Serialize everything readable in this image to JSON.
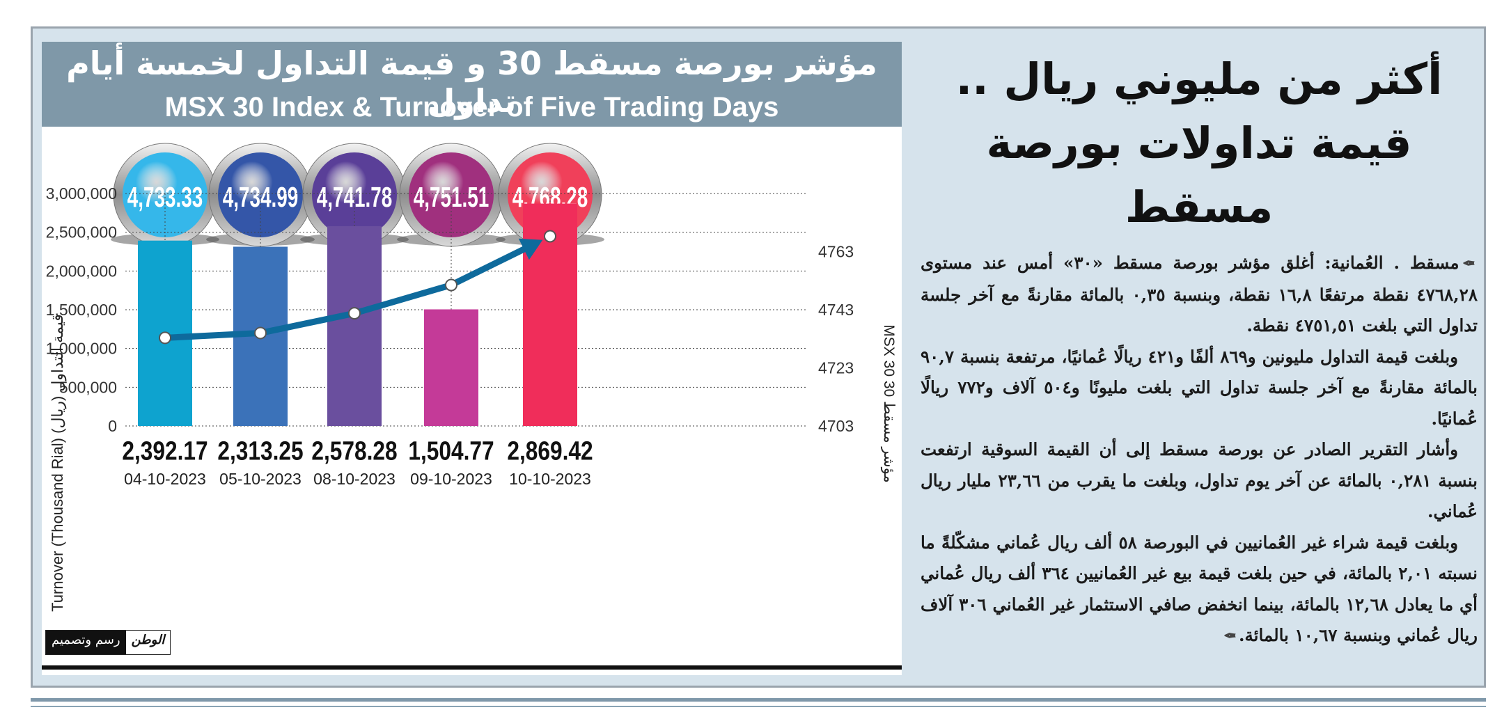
{
  "article": {
    "headline_line1": "أكثر من مليوني ريال ..",
    "headline_line2": "قيمة تداولات بورصة مسقط",
    "paragraphs": [
      "مسقط . العُمانية: أغلق مؤشر بورصة مسقط «٣٠» أمس عند مستوى ٤٧٦٨,٢٨ نقطة مرتفعًا ١٦,٨ نقطة، وبنسبة ٠,٣٥ بالمائة مقارنةً مع آخر جلسة تداول التي بلغت ٤٧٥١,٥١ نقطة.",
      "وبلغت قيمة التداول مليونين و٨٦٩ ألفًا و٤٢١ ريالًا عُمانيًا، مرتفعة بنسبة ٩٠,٧ بالمائة مقارنةً مع آخر جلسة تداول التي بلغت مليونًا و٥٠٤ آلاف و٧٧٢ ريالًا عُمانيًا.",
      "وأشار التقرير الصادر عن بورصة مسقط إلى أن القيمة السوقية ارتفعت بنسبة ٠,٢٨١ بالمائة عن آخر يوم تداول، وبلغت ما يقرب من ٢٣,٦٦ مليار ريال عُماني.",
      "وبلغت قيمة شراء غير العُمانيين في البورصة ٥٨ ألف ريال عُماني مشكّلةً ما نسبته ٢,٠١ بالمائة، في حين بلغت قيمة بيع غير العُمانيين ٣٦٤ ألف ريال عُماني أي ما يعادل ١٢,٦٨ بالمائة، بينما انخفض صافي الاستثمار غير العُماني ٣٠٦ آلاف ريال عُماني وبنسبة ١٠,٦٧ بالمائة."
    ]
  },
  "chart_panel": {
    "title_ar": "مؤشر بورصة مسقط 30 و قيمة التداول لخمسة أيام تداول",
    "title_en": "MSX 30 Index & Turnover of Five Trading Days",
    "logo_credit": "رسم وتصميم",
    "logo_name": "الوطن"
  },
  "chart_data": {
    "type": "bar",
    "categories": [
      "04-10-2023",
      "05-10-2023",
      "08-10-2023",
      "09-10-2023",
      "10-10-2023"
    ],
    "ylabel_left": "Turnover (Thousand Rial)  قيمة التداول (ريال)",
    "ylabel_right": "MSX 30  مؤشر مسقط 30",
    "ylim_left": [
      0,
      3000000
    ],
    "left_ticks": [
      "0",
      "500,000",
      "1,000,000",
      "1,500,000",
      "2,000,000",
      "2,500,000",
      "3,000,000"
    ],
    "ylim_right": [
      4703,
      4783
    ],
    "right_ticks": [
      "4703",
      "4723",
      "4743",
      "4763"
    ],
    "grid": true,
    "series": [
      {
        "kind": "bar",
        "values": [
          2392170,
          2313250,
          2578280,
          1504770,
          2869420
        ],
        "labels": [
          "2,392.17",
          "2,313.25",
          "2,578.28",
          "1,504.77",
          "2,869.42"
        ],
        "colors": [
          "#0ea3cf",
          "#3b72b9",
          "#6a4f9e",
          "#c43a98",
          "#f02d5a"
        ]
      },
      {
        "kind": "line",
        "values": [
          4733.33,
          4734.99,
          4741.78,
          4751.51,
          4768.28
        ],
        "labels": [
          "4,733.33",
          "4,734.99",
          "4,741.78",
          "4,751.51",
          "4,768.28"
        ],
        "line_color": "#0e6a9c"
      }
    ],
    "bubble_colors": [
      "#35b7ea",
      "#3456a8",
      "#5a3f98",
      "#a0307e",
      "#f0405a"
    ]
  }
}
